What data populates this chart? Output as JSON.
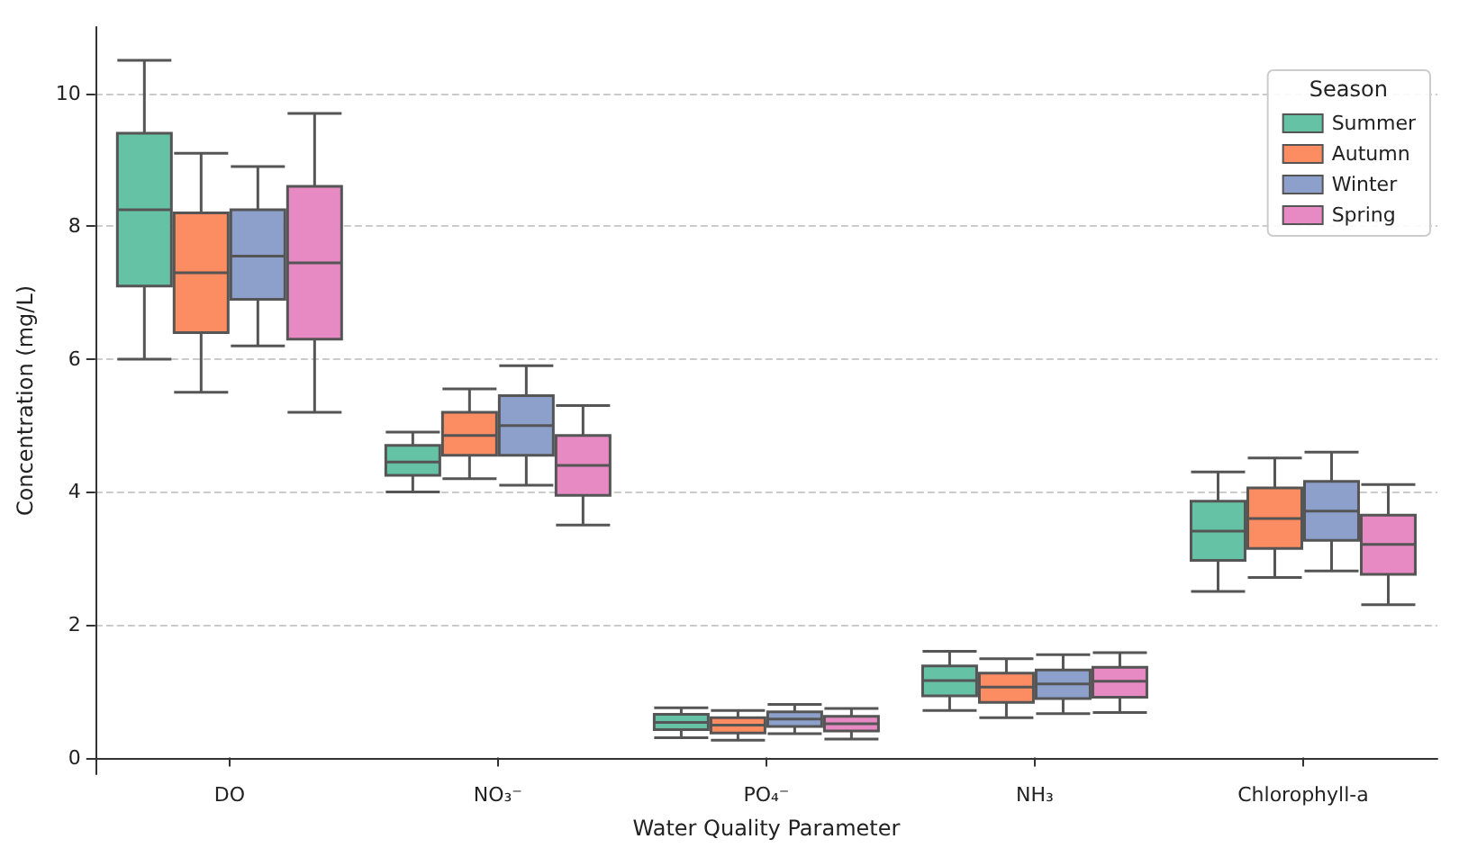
{
  "chart_data": {
    "type": "box",
    "xlabel": "Water Quality Parameter",
    "ylabel": "Concentration (mg/L)",
    "legend_title": "Season",
    "categories": [
      "DO",
      "NO₃⁻",
      "PO₄⁻",
      "NH₃",
      "Chlorophyll-a"
    ],
    "ylim": [
      -0.25,
      11
    ],
    "yticks": [
      0,
      2,
      4,
      6,
      8,
      10
    ],
    "grid": "y",
    "legend": "top right",
    "series": [
      {
        "name": "Summer",
        "color": "#66c2a5",
        "boxes": [
          {
            "low": 6.0,
            "q1": 7.1,
            "median": 8.25,
            "q3": 9.4,
            "high": 10.5
          },
          {
            "low": 4.0,
            "q1": 4.25,
            "median": 4.45,
            "q3": 4.7,
            "high": 4.9
          },
          {
            "low": 0.3,
            "q1": 0.42,
            "median": 0.53,
            "q3": 0.65,
            "high": 0.75
          },
          {
            "low": 0.71,
            "q1": 0.93,
            "median": 1.16,
            "q3": 1.38,
            "high": 1.6
          },
          {
            "low": 2.5,
            "q1": 2.97,
            "median": 3.41,
            "q3": 3.86,
            "high": 4.3
          }
        ]
      },
      {
        "name": "Autumn",
        "color": "#fc8d62",
        "boxes": [
          {
            "low": 5.5,
            "q1": 6.4,
            "median": 7.3,
            "q3": 8.2,
            "high": 9.1
          },
          {
            "low": 4.2,
            "q1": 4.55,
            "median": 4.85,
            "q3": 5.2,
            "high": 5.55
          },
          {
            "low": 0.26,
            "q1": 0.37,
            "median": 0.49,
            "q3": 0.6,
            "high": 0.71
          },
          {
            "low": 0.6,
            "q1": 0.83,
            "median": 1.06,
            "q3": 1.27,
            "high": 1.49
          },
          {
            "low": 2.71,
            "q1": 3.15,
            "median": 3.6,
            "q3": 4.06,
            "high": 4.51
          }
        ]
      },
      {
        "name": "Winter",
        "color": "#8da0cb",
        "boxes": [
          {
            "low": 6.2,
            "q1": 6.9,
            "median": 7.55,
            "q3": 8.25,
            "high": 8.9
          },
          {
            "low": 4.1,
            "q1": 4.55,
            "median": 5.0,
            "q3": 5.45,
            "high": 5.9
          },
          {
            "low": 0.36,
            "q1": 0.47,
            "median": 0.58,
            "q3": 0.69,
            "high": 0.8
          },
          {
            "low": 0.66,
            "q1": 0.89,
            "median": 1.11,
            "q3": 1.32,
            "high": 1.55
          },
          {
            "low": 2.81,
            "q1": 3.27,
            "median": 3.71,
            "q3": 4.16,
            "high": 4.6
          }
        ]
      },
      {
        "name": "Spring",
        "color": "#e78ac3",
        "boxes": [
          {
            "low": 5.2,
            "q1": 6.3,
            "median": 7.45,
            "q3": 8.6,
            "high": 9.7
          },
          {
            "low": 3.5,
            "q1": 3.95,
            "median": 4.4,
            "q3": 4.85,
            "high": 5.3
          },
          {
            "low": 0.28,
            "q1": 0.4,
            "median": 0.51,
            "q3": 0.62,
            "high": 0.74
          },
          {
            "low": 0.68,
            "q1": 0.91,
            "median": 1.15,
            "q3": 1.36,
            "high": 1.58
          },
          {
            "low": 2.3,
            "q1": 2.76,
            "median": 3.21,
            "q3": 3.65,
            "high": 4.11
          }
        ]
      }
    ]
  }
}
